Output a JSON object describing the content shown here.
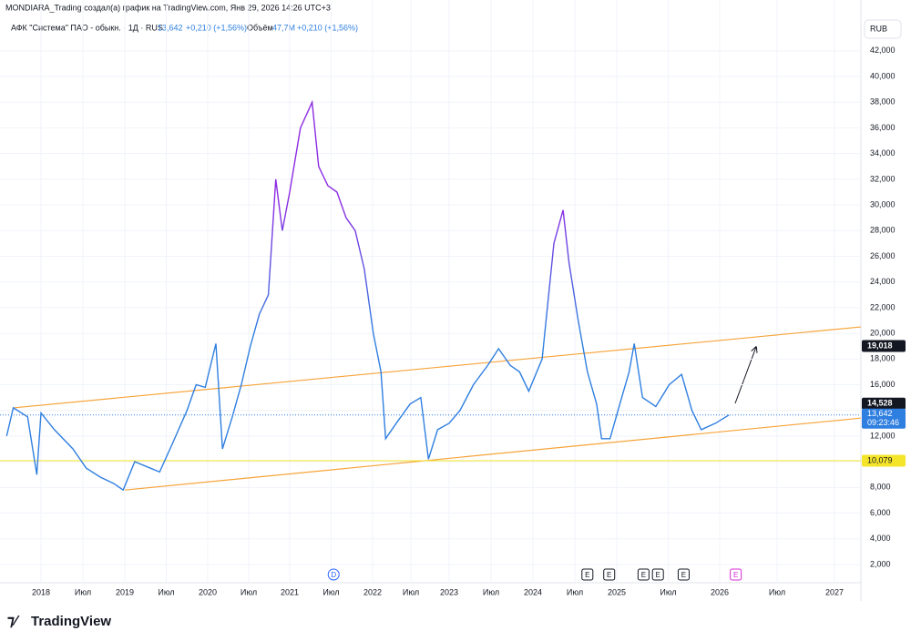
{
  "header": {
    "author_line": "MONDIARA_Trading создал(а) график на TradingView.com, Янв 29, 2026 14:26 UTC+3",
    "symbol": "АФК \"Система\" ПАО - обыкн. · 1Д · RUS",
    "price": "13,642",
    "change": "+0,210 (+1,56%)",
    "volume_label": "Объём",
    "volume": "47,7M",
    "volume_change": "+0,210 (+1,56%)",
    "currency": "RUB"
  },
  "footer": {
    "brand": "TradingView"
  },
  "chart_data": {
    "type": "line",
    "x": [
      2017.59,
      2017.67,
      2017.84,
      2017.95,
      2018.0,
      2018.16,
      2018.38,
      2018.54,
      2018.71,
      2018.87,
      2018.98,
      2019.12,
      2019.31,
      2019.42,
      2019.58,
      2019.75,
      2019.86,
      2019.97,
      2020.1,
      2020.18,
      2020.3,
      2020.41,
      2020.52,
      2020.63,
      2020.74,
      2020.83,
      2020.91,
      2021.0,
      2021.13,
      2021.27,
      2021.35,
      2021.46,
      2021.57,
      2021.68,
      2021.79,
      2021.9,
      2022.01,
      2022.11,
      2022.17,
      2022.31,
      2022.49,
      2022.63,
      2022.73,
      2022.85,
      2023.0,
      2023.13,
      2023.29,
      2023.46,
      2023.59,
      2023.73,
      2023.84,
      2023.95,
      2024.11,
      2024.25,
      2024.36,
      2024.43,
      2024.54,
      2024.65,
      2024.76,
      2024.82,
      2024.92,
      2025.03,
      2025.12,
      2025.17,
      2025.25,
      2025.38,
      2025.51,
      2025.63,
      2025.73,
      2025.82,
      2025.96,
      2026.08
    ],
    "series": [
      {
        "color": "#2f7fe0",
        "high_color": "#8b2be2",
        "values": [
          12.0,
          14.2,
          13.5,
          9.0,
          13.8,
          12.5,
          11.0,
          9.5,
          8.8,
          8.3,
          7.8,
          10.0,
          9.5,
          9.2,
          11.5,
          14.0,
          16.0,
          15.8,
          19.2,
          11.0,
          13.5,
          16.0,
          19.0,
          21.5,
          23.0,
          32.0,
          28.0,
          31.0,
          36.0,
          38.0,
          33.0,
          31.5,
          31.0,
          29.0,
          28.0,
          25.0,
          20.0,
          17.0,
          11.8,
          13.0,
          14.5,
          15.0,
          10.2,
          12.5,
          13.0,
          14.0,
          16.0,
          17.5,
          18.8,
          17.5,
          17.0,
          15.5,
          18.0,
          27.0,
          29.6,
          25.5,
          21.0,
          17.0,
          14.5,
          11.8,
          11.8,
          14.5,
          17.0,
          19.2,
          15.0,
          14.3,
          16.0,
          16.8,
          14.0,
          12.5,
          13.0,
          13.642
        ]
      }
    ],
    "color_stops": [
      20,
      30
    ],
    "xlim": [
      2017.54,
      2027.23
    ],
    "xticks": [
      2018,
      {
        "value": 2018.5,
        "label": "Июл"
      },
      2019,
      {
        "value": 2019.5,
        "label": "Июл"
      },
      2020,
      {
        "value": 2020.5,
        "label": "Июл"
      },
      2021,
      {
        "value": 2021.5,
        "label": "Июл"
      },
      2022,
      {
        "value": 2022.5,
        "label": "Июл"
      },
      2023,
      {
        "value": 2023.5,
        "label": "Июл"
      },
      2024,
      {
        "value": 2024.5,
        "label": "Июл"
      },
      2025,
      {
        "value": 2025.5,
        "label": "Июл"
      },
      2026,
      {
        "value": 2026.5,
        "label": "Июл"
      },
      2027
    ],
    "ylim": [
      0.58,
      44.4
    ],
    "yticks": [
      {
        "value": 2,
        "label": "2,000"
      },
      {
        "value": 4,
        "label": "4,000"
      },
      {
        "value": 6,
        "label": "6,000"
      },
      {
        "value": 8,
        "label": "8,000"
      },
      {
        "value": 10,
        "label": "10,000"
      },
      {
        "value": 12,
        "label": "12,000"
      },
      {
        "value": 14,
        "label": "14,000"
      },
      {
        "value": 16,
        "label": "16,000"
      },
      {
        "value": 18,
        "label": "18,000"
      },
      {
        "value": 20,
        "label": "20,000"
      },
      {
        "value": 22,
        "label": "22,000"
      },
      {
        "value": 24,
        "label": "24,000"
      },
      {
        "value": 26,
        "label": "26,000"
      },
      {
        "value": 28,
        "label": "28,000"
      },
      {
        "value": 30,
        "label": "30,000"
      },
      {
        "value": 32,
        "label": "32,000"
      },
      {
        "value": 34,
        "label": "34,000"
      },
      {
        "value": 36,
        "label": "36,000"
      },
      {
        "value": 38,
        "label": "38,000"
      },
      {
        "value": 40,
        "label": "40,000"
      },
      {
        "value": 42,
        "label": "42,000"
      }
    ],
    "grid": true,
    "trend_lines": [
      {
        "color": "#f7a33a",
        "x": [
          2017.67,
          2027.23
        ],
        "values": [
          14.2,
          20.5
        ]
      },
      {
        "color": "#f7a33a",
        "x": [
          2019.0,
          2027.23
        ],
        "values": [
          7.8,
          13.4
        ]
      }
    ],
    "horizontal_line": {
      "value": 10.079,
      "label": "10,079",
      "color": "#f5e52a"
    },
    "price_line": {
      "value": 13.642,
      "label": "13,642",
      "countdown": "09:23:46",
      "color": "#2f7fe0"
    },
    "price_labels": [
      {
        "value": 19.018,
        "label": "19,018"
      },
      {
        "value": 14.528,
        "label": "14,528"
      }
    ],
    "events": [
      {
        "x": 2021.53,
        "label": "D",
        "color": "#2962ff"
      },
      {
        "x": 2024.65,
        "label": "E",
        "color": "#131722"
      },
      {
        "x": 2024.91,
        "label": "E",
        "color": "#131722"
      },
      {
        "x": 2025.26,
        "label": "E",
        "color": "#131722"
      },
      {
        "x": 2025.4,
        "label": "E",
        "color": "#131722"
      },
      {
        "x": 2025.65,
        "label": "E",
        "color": "#131722"
      },
      {
        "x": 2026.14,
        "label": "E",
        "color": "#d62cd6"
      }
    ]
  }
}
